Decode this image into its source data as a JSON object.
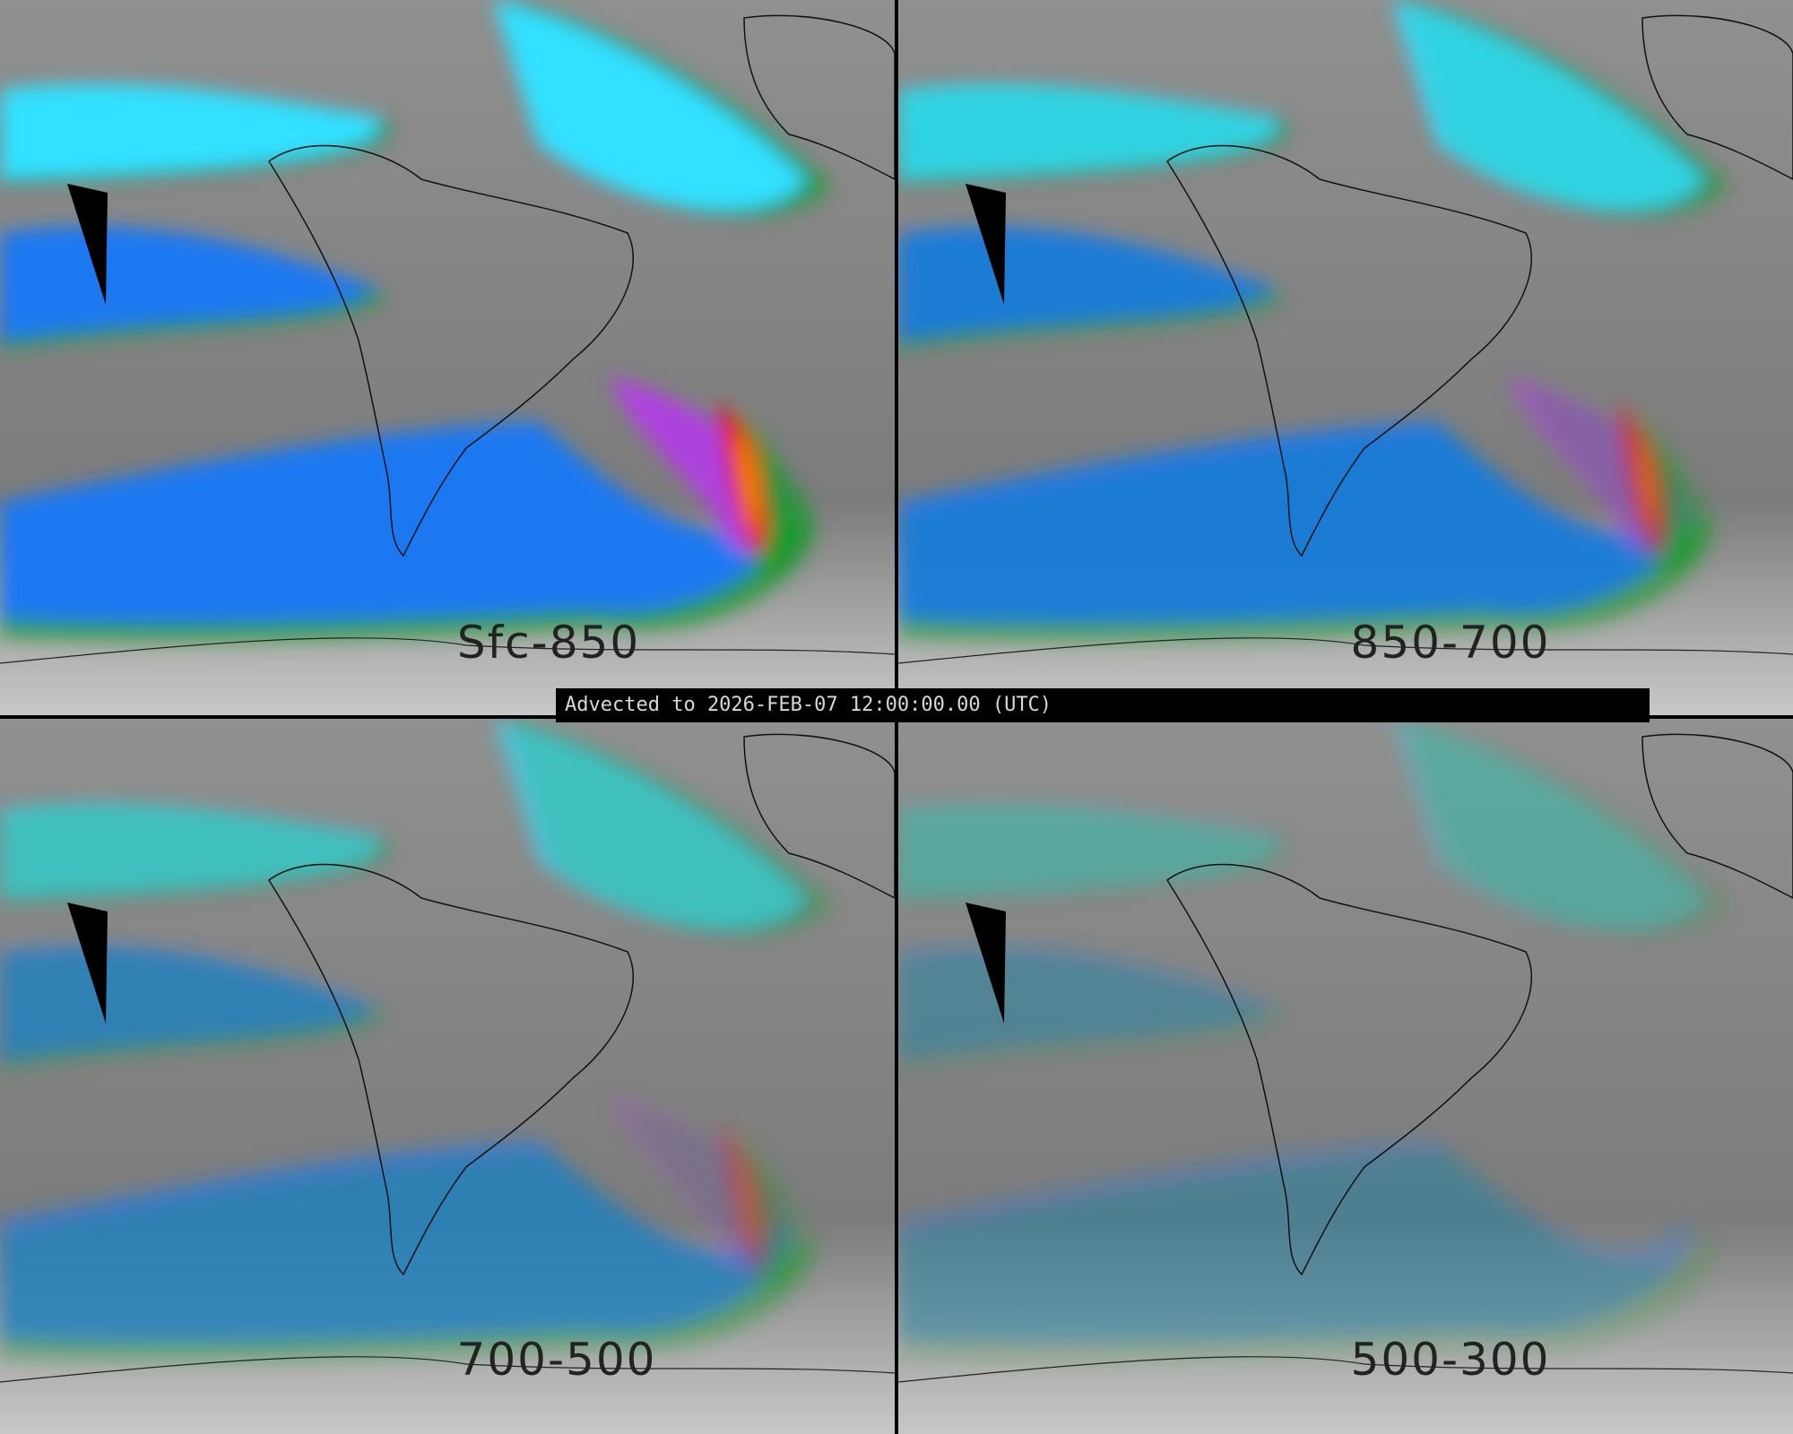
{
  "panels": [
    {
      "label": "Sfc-850",
      "intensity": "high"
    },
    {
      "label": "850-700",
      "intensity": "medium"
    },
    {
      "label": "700-500",
      "intensity": "medium-low"
    },
    {
      "label": "500-300",
      "intensity": "low"
    }
  ],
  "timestamp_bar": {
    "text": "Advected to 2026-FEB-07 12:00:00.00 (UTC)"
  },
  "colors": {
    "background_gray": "#8a8a8a",
    "green": "#1a9a2a",
    "blue": "#1a78f0",
    "cyan": "#30e0ff",
    "purple": "#b040e0",
    "red": "#e01010",
    "orange": "#ff9000",
    "black": "#000000"
  }
}
